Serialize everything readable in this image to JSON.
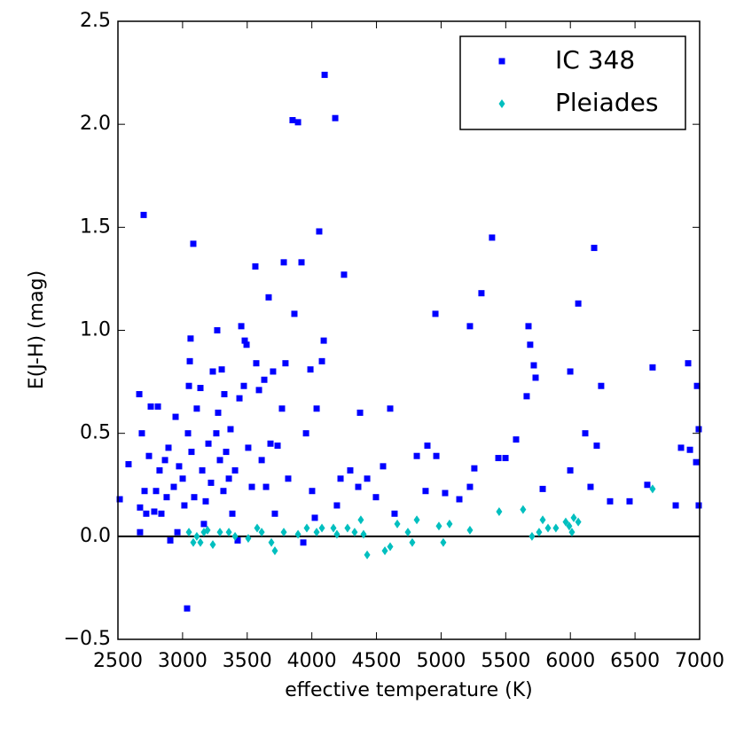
{
  "chart_data": {
    "type": "scatter",
    "xlabel": "effective temperature (K)",
    "ylabel": "E(J-H) (mag)",
    "xlim": [
      2500,
      7000
    ],
    "ylim": [
      -0.5,
      2.5
    ],
    "xticks": [
      2500,
      3000,
      3500,
      4000,
      4500,
      5000,
      5500,
      6000,
      6500,
      7000
    ],
    "yticks": [
      {
        "value": -0.5,
        "label": "−0.5"
      },
      {
        "value": 0,
        "label": "0.0"
      },
      0.5,
      {
        "value": 1,
        "label": "1.0"
      },
      1.5,
      {
        "value": 2,
        "label": "2.0"
      },
      2.5
    ],
    "hline": 0,
    "legend": "upper right",
    "series": [
      {
        "name": "IC 348",
        "color": "#0000ff",
        "marker": "square",
        "x": [
          2514,
          2582,
          2665,
          2699,
          2685,
          2671,
          2671,
          2706,
          2719,
          2754,
          2740,
          2781,
          2809,
          2795,
          2822,
          2836,
          2864,
          2891,
          2905,
          2877,
          2932,
          2946,
          2960,
          2973,
          3001,
          3014,
          3035,
          3042,
          3049,
          3056,
          3062,
          3083,
          3069,
          3090,
          3110,
          3138,
          3152,
          3165,
          3179,
          3200,
          3220,
          3234,
          3261,
          3268,
          3275,
          3289,
          3303,
          3316,
          3323,
          3337,
          3358,
          3371,
          3385,
          3406,
          3426,
          3440,
          3454,
          3474,
          3481,
          3495,
          3508,
          3536,
          3563,
          3570,
          3591,
          3612,
          3632,
          3646,
          3666,
          3680,
          3700,
          3714,
          3735,
          3769,
          3783,
          3796,
          3817,
          3851,
          3865,
          3893,
          3920,
          3934,
          3955,
          3989,
          4002,
          4023,
          4037,
          4057,
          4078,
          4092,
          4099,
          4181,
          4249,
          4222,
          4194,
          4297,
          4373,
          4359,
          4428,
          4496,
          4551,
          4606,
          4640,
          4812,
          4880,
          4894,
          4956,
          4963,
          5031,
          5141,
          5223,
          5257,
          5312,
          5394,
          5443,
          5498,
          5580,
          5662,
          5676,
          5689,
          5717,
          5731,
          5786,
          5999,
          5999,
          6061,
          6115,
          6184,
          6156,
          6204,
          6238,
          6595,
          6636,
          6815,
          6911,
          6925,
          6980,
          6973,
          6993,
          6993,
          6856,
          6458,
          6307,
          5223
        ],
        "values": [
          0.18,
          0.35,
          0.69,
          1.56,
          0.5,
          0.14,
          0.02,
          0.22,
          0.11,
          0.63,
          0.39,
          0.12,
          0.63,
          0.22,
          0.32,
          0.11,
          0.37,
          0.43,
          -0.02,
          0.19,
          0.24,
          0.58,
          0.02,
          0.34,
          0.28,
          0.15,
          -0.35,
          0.5,
          0.73,
          0.85,
          0.96,
          1.42,
          0.41,
          0.19,
          0.62,
          0.72,
          0.32,
          0.06,
          0.17,
          0.45,
          0.26,
          0.8,
          0.5,
          1.0,
          0.6,
          0.37,
          0.81,
          0.22,
          0.69,
          0.41,
          0.28,
          0.52,
          0.11,
          0.32,
          -0.02,
          0.67,
          1.02,
          0.73,
          0.95,
          0.93,
          0.43,
          0.24,
          1.31,
          0.84,
          0.71,
          0.37,
          0.76,
          0.24,
          1.16,
          0.45,
          0.8,
          0.11,
          0.44,
          0.62,
          1.33,
          0.84,
          0.28,
          2.02,
          1.08,
          2.01,
          1.33,
          -0.03,
          0.5,
          0.81,
          0.22,
          0.09,
          0.62,
          1.48,
          0.85,
          0.95,
          2.24,
          2.03,
          1.27,
          0.28,
          0.15,
          0.32,
          0.6,
          0.24,
          0.28,
          0.19,
          0.34,
          0.62,
          0.11,
          0.39,
          0.22,
          0.44,
          1.08,
          0.39,
          0.21,
          0.18,
          1.02,
          0.33,
          1.18,
          1.45,
          0.38,
          0.38,
          0.47,
          0.68,
          1.02,
          0.93,
          0.83,
          0.77,
          0.23,
          0.8,
          0.32,
          1.13,
          0.5,
          1.4,
          0.24,
          0.44,
          0.73,
          0.25,
          0.82,
          0.15,
          0.84,
          0.42,
          0.73,
          0.36,
          0.15,
          0.52,
          0.43,
          0.17,
          0.17,
          0.24
        ]
      },
      {
        "name": "Pleiades",
        "color": "#00bfbf",
        "marker": "diamond",
        "x": [
          3049,
          3083,
          3110,
          3138,
          3165,
          3193,
          3234,
          3289,
          3358,
          3406,
          3508,
          3577,
          3612,
          3687,
          3714,
          3783,
          3893,
          3961,
          4037,
          4078,
          4167,
          4194,
          4276,
          4331,
          4379,
          4400,
          4428,
          4565,
          4606,
          4661,
          4743,
          4777,
          4812,
          4983,
          5017,
          5065,
          5223,
          5449,
          5634,
          5703,
          5758,
          5786,
          5827,
          5888,
          5964,
          5991,
          6012,
          6026,
          6061,
          6636
        ],
        "values": [
          0.02,
          -0.03,
          0.0,
          -0.03,
          0.02,
          0.03,
          -0.04,
          0.02,
          0.02,
          0.0,
          -0.01,
          0.04,
          0.02,
          -0.03,
          -0.07,
          0.02,
          0.01,
          0.04,
          0.02,
          0.04,
          0.04,
          0.01,
          0.04,
          0.02,
          0.08,
          0.01,
          -0.09,
          -0.07,
          -0.05,
          0.06,
          0.02,
          -0.03,
          0.08,
          0.05,
          -0.03,
          0.06,
          0.03,
          0.12,
          0.13,
          0.0,
          0.02,
          0.08,
          0.04,
          0.04,
          0.07,
          0.05,
          0.02,
          0.09,
          0.07,
          0.23
        ]
      }
    ]
  }
}
